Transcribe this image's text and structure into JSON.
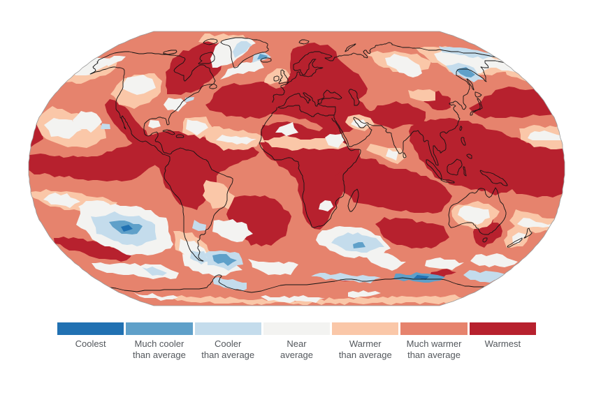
{
  "figure": {
    "type": "world-temperature-anomaly-map",
    "background": "#ffffff"
  },
  "palette": {
    "coolest": "#2171b2",
    "much_cooler": "#5fa0c9",
    "cooler": "#c4dcec",
    "near": "#f3f3f1",
    "warmer": "#fac7a8",
    "much_warmer": "#e6836d",
    "warmest": "#b7212e",
    "coastline": "#131313",
    "outline": "#9a9a9a",
    "label_text": "#53575c"
  },
  "legend": {
    "items": [
      {
        "key": "coolest",
        "color": "#2171b2",
        "line1": "Coolest",
        "line2": ""
      },
      {
        "key": "much_cooler",
        "color": "#5fa0c9",
        "line1": "Much cooler",
        "line2": "than average"
      },
      {
        "key": "cooler",
        "color": "#c4dcec",
        "line1": "Cooler",
        "line2": "than average"
      },
      {
        "key": "near",
        "color": "#f3f3f1",
        "line1": "Near",
        "line2": "average"
      },
      {
        "key": "warmer",
        "color": "#fac7a8",
        "line1": "Warmer",
        "line2": "than average"
      },
      {
        "key": "much_warmer",
        "color": "#e6836d",
        "line1": "Much warmer",
        "line2": "than average"
      },
      {
        "key": "warmest",
        "color": "#b7212e",
        "line1": "Warmest",
        "line2": ""
      }
    ]
  }
}
